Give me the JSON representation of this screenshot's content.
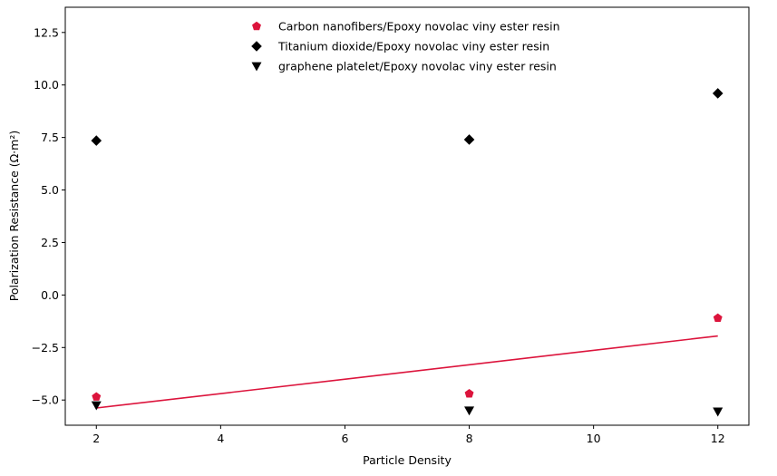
{
  "chart_data": {
    "type": "scatter",
    "xlabel": "Particle Density",
    "ylabel": "Polarization Resistance (Ω·m²)",
    "xlim": [
      1.5,
      12.5
    ],
    "ylim": [
      -6.2,
      13.7
    ],
    "xticks": [
      2,
      4,
      6,
      8,
      10,
      12
    ],
    "yticks": [
      -5.0,
      -2.5,
      0.0,
      2.5,
      5.0,
      7.5,
      10.0,
      12.5
    ],
    "xtick_labels": [
      "2",
      "4",
      "6",
      "8",
      "10",
      "12"
    ],
    "ytick_labels": [
      "−5.0",
      "−2.5",
      "0.0",
      "2.5",
      "5.0",
      "7.5",
      "10.0",
      "12.5"
    ],
    "grid": false,
    "legend_position": "top-center",
    "series": [
      {
        "name": "Carbon nanofibers/Epoxy novolac viny ester resin",
        "marker": "pentagon",
        "color": "#dc143c",
        "x": [
          2,
          8,
          12
        ],
        "y": [
          -4.85,
          -4.7,
          -1.1
        ]
      },
      {
        "name": "Titanium dioxide/Epoxy novolac viny ester resin",
        "marker": "diamond",
        "color": "#000000",
        "x": [
          2,
          8,
          12
        ],
        "y": [
          7.35,
          7.4,
          9.6
        ]
      },
      {
        "name": "graphene platelet/Epoxy novolac viny ester resin",
        "marker": "triangle-down",
        "color": "#000000",
        "x": [
          2,
          8,
          12
        ],
        "y": [
          -5.25,
          -5.5,
          -5.55
        ]
      }
    ],
    "trendline": {
      "color": "#dc143c",
      "x": [
        2,
        12
      ],
      "y": [
        -5.38,
        -1.95
      ]
    }
  }
}
